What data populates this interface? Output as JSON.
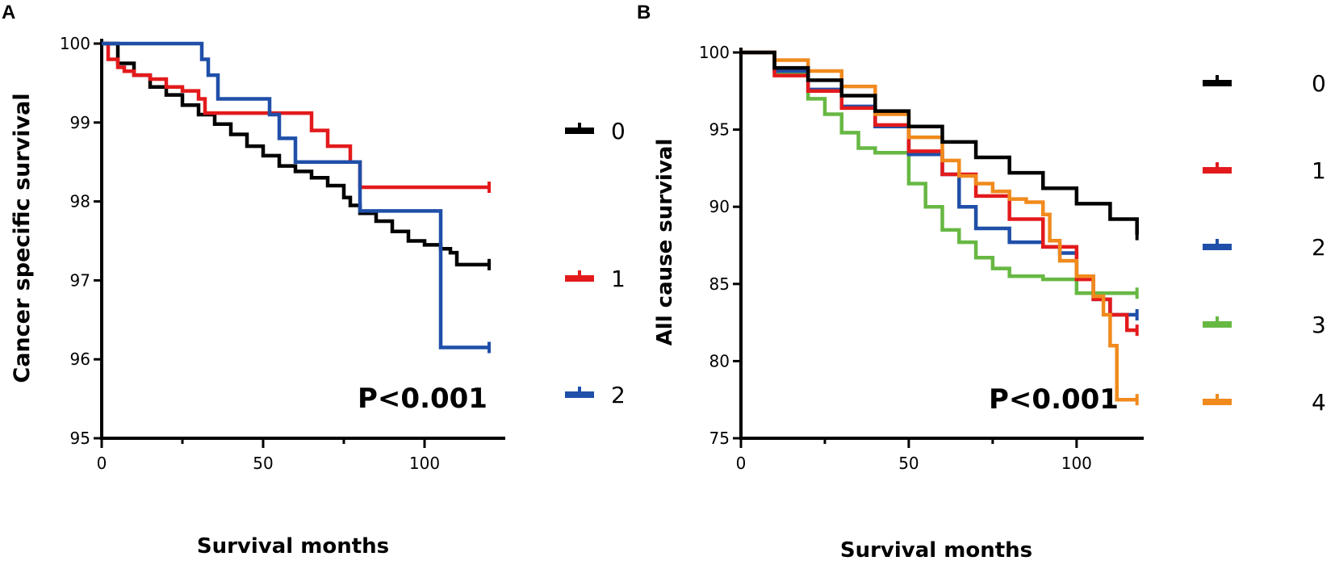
{
  "chart_data": [
    {
      "type": "line",
      "panel_label": "A",
      "title": "",
      "xlabel": "Survival months",
      "ylabel": "Cancer specific survival",
      "xlim": [
        0,
        125
      ],
      "ylim": [
        95,
        100
      ],
      "xticks": [
        0,
        50,
        100
      ],
      "yticks": [
        95,
        96,
        97,
        98,
        99,
        100
      ],
      "annotation": "P<0.001",
      "legend_position": "right",
      "series": [
        {
          "name": "0",
          "color": "#000000",
          "x": [
            0,
            5,
            10,
            15,
            20,
            25,
            30,
            35,
            40,
            45,
            50,
            55,
            60,
            65,
            70,
            75,
            77,
            80,
            85,
            90,
            95,
            100,
            105,
            108,
            110,
            115,
            120
          ],
          "y": [
            100,
            99.75,
            99.6,
            99.45,
            99.35,
            99.22,
            99.1,
            98.98,
            98.85,
            98.7,
            98.58,
            98.45,
            98.38,
            98.3,
            98.2,
            98.05,
            97.95,
            97.85,
            97.75,
            97.62,
            97.5,
            97.45,
            97.4,
            97.35,
            97.2,
            97.2,
            97.2
          ]
        },
        {
          "name": "1",
          "color": "#e31a1c",
          "x": [
            0,
            2,
            5,
            7,
            10,
            15,
            20,
            25,
            30,
            32,
            58,
            65,
            70,
            77,
            80,
            100,
            120
          ],
          "y": [
            100,
            99.8,
            99.7,
            99.65,
            99.6,
            99.55,
            99.45,
            99.4,
            99.3,
            99.12,
            99.12,
            98.9,
            98.7,
            98.5,
            98.18,
            98.18,
            98.18
          ]
        },
        {
          "name": "2",
          "color": "#1f4fa8",
          "x": [
            0,
            29,
            31,
            33,
            36,
            52,
            55,
            60,
            70,
            80,
            90,
            100,
            105,
            110,
            120
          ],
          "y": [
            100,
            100,
            99.8,
            99.6,
            99.3,
            99.1,
            98.8,
            98.5,
            98.5,
            97.88,
            97.88,
            97.88,
            96.15,
            96.15,
            96.15
          ]
        }
      ]
    },
    {
      "type": "line",
      "panel_label": "B",
      "title": "",
      "xlabel": "Survival months",
      "ylabel": "All cause survival",
      "xlim": [
        0,
        120
      ],
      "ylim": [
        75,
        100
      ],
      "xticks": [
        0,
        50,
        100
      ],
      "yticks": [
        75,
        80,
        85,
        90,
        95,
        100
      ],
      "annotation": "P<0.001",
      "legend_position": "right",
      "series": [
        {
          "name": "0",
          "color": "#000000",
          "x": [
            0,
            10,
            20,
            30,
            40,
            50,
            60,
            70,
            80,
            90,
            100,
            110,
            118
          ],
          "y": [
            100,
            99,
            98.2,
            97.2,
            96.2,
            95.2,
            94.2,
            93.2,
            92.2,
            91.2,
            90.2,
            89.2,
            88.2
          ]
        },
        {
          "name": "1",
          "color": "#e31a1c",
          "x": [
            0,
            10,
            20,
            30,
            40,
            50,
            60,
            70,
            80,
            90,
            100,
            105,
            110,
            115,
            118
          ],
          "y": [
            100,
            98.5,
            97.5,
            96.4,
            95.3,
            93.6,
            92.1,
            90.7,
            89.2,
            87.4,
            85.3,
            84.0,
            83.0,
            82.0,
            82.0
          ]
        },
        {
          "name": "2",
          "color": "#1f4fa8",
          "x": [
            0,
            10,
            20,
            30,
            40,
            50,
            60,
            65,
            70,
            80,
            90,
            95,
            100,
            105,
            110,
            118
          ],
          "y": [
            100,
            98.8,
            97.6,
            96.5,
            95.2,
            93.4,
            92.1,
            90.0,
            88.6,
            87.7,
            87.4,
            87.0,
            85.5,
            84.0,
            83.0,
            83.0
          ]
        },
        {
          "name": "3",
          "color": "#67b843",
          "x": [
            0,
            10,
            20,
            25,
            30,
            35,
            40,
            50,
            55,
            60,
            65,
            70,
            75,
            80,
            90,
            95,
            100,
            110,
            118
          ],
          "y": [
            100,
            98.6,
            97.0,
            96.0,
            94.8,
            93.8,
            93.5,
            91.5,
            90.0,
            88.5,
            87.7,
            86.7,
            86.0,
            85.5,
            85.3,
            85.3,
            84.4,
            84.4,
            84.4
          ]
        },
        {
          "name": "4",
          "color": "#f08a1d",
          "x": [
            0,
            10,
            20,
            30,
            40,
            50,
            60,
            65,
            70,
            75,
            80,
            85,
            90,
            92,
            95,
            100,
            105,
            108,
            110,
            112,
            118
          ],
          "y": [
            100,
            99.5,
            98.8,
            97.8,
            96.0,
            94.5,
            93.0,
            92.0,
            91.5,
            91.0,
            90.5,
            90.3,
            89.5,
            87.8,
            86.5,
            85.5,
            84.2,
            83.0,
            81.0,
            77.5,
            77.5
          ]
        }
      ]
    }
  ]
}
